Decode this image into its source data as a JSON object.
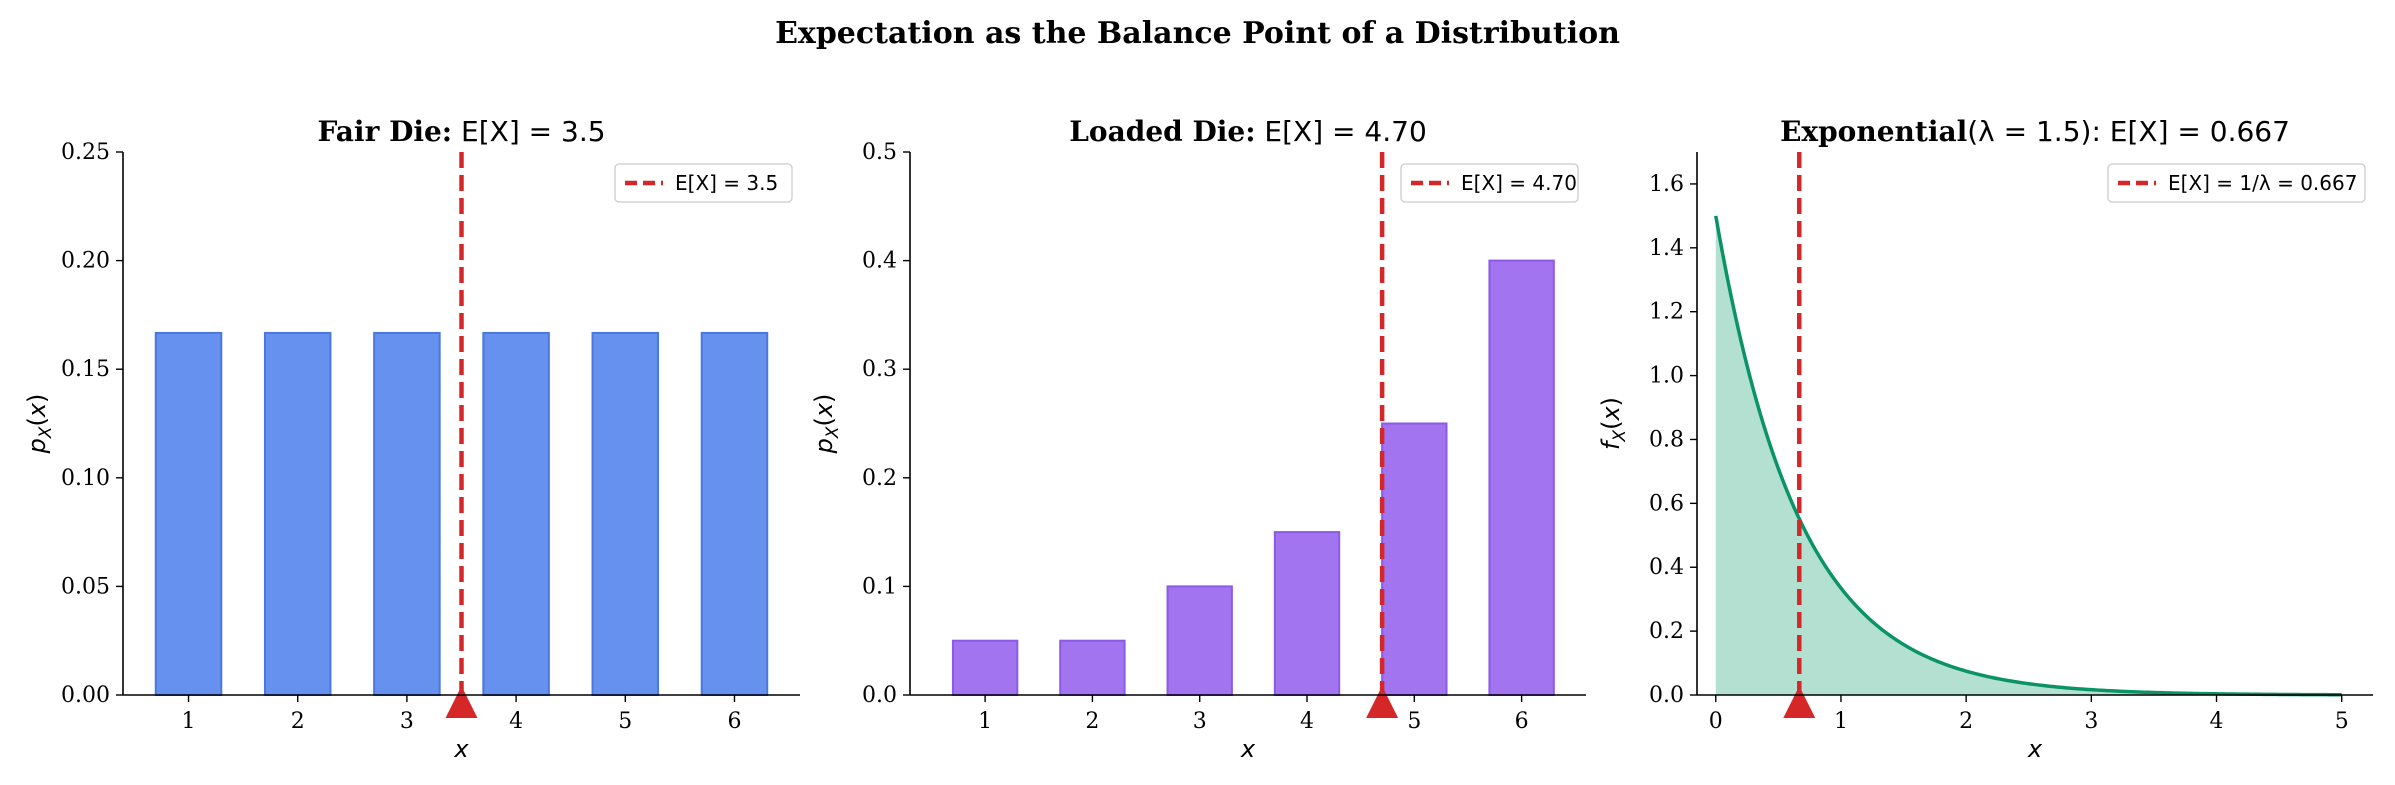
{
  "figure": {
    "title": "Expectation as the Balance Point of a Distribution"
  },
  "chart_data": [
    {
      "type": "bar",
      "title_bold": "Fair Die:",
      "title_math": "E[X] = 3.5",
      "xlabel": "x",
      "ylabel": "p_X(x)",
      "categories": [
        "1",
        "2",
        "3",
        "4",
        "5",
        "6"
      ],
      "x": [
        1,
        2,
        3,
        4,
        5,
        6
      ],
      "values": [
        0.1667,
        0.1667,
        0.1667,
        0.1667,
        0.1667,
        0.1667
      ],
      "xlim": [
        0.4,
        6.6
      ],
      "ylim": [
        0,
        0.25
      ],
      "yticks": [
        "0.00",
        "0.05",
        "0.10",
        "0.15",
        "0.20",
        "0.25"
      ],
      "expectation": 3.5,
      "legend": {
        "label": "E[X] = 3.5",
        "position": "top-right"
      },
      "colors": {
        "fill": "#6691ee",
        "edge": "#4a78e0",
        "mean": "#d62728"
      },
      "grid": false
    },
    {
      "type": "bar",
      "title_bold": "Loaded Die:",
      "title_math": "E[X] = 4.70",
      "xlabel": "x",
      "ylabel": "p_X(x)",
      "categories": [
        "1",
        "2",
        "3",
        "4",
        "5",
        "6"
      ],
      "x": [
        1,
        2,
        3,
        4,
        5,
        6
      ],
      "values": [
        0.05,
        0.05,
        0.1,
        0.15,
        0.25,
        0.4
      ],
      "xlim": [
        0.3,
        6.6
      ],
      "ylim": [
        0,
        0.5
      ],
      "yticks": [
        "0.0",
        "0.1",
        "0.2",
        "0.3",
        "0.4",
        "0.5"
      ],
      "expectation": 4.7,
      "legend": {
        "label": "E[X] = 4.70",
        "position": "top-right"
      },
      "colors": {
        "fill": "#a374f0",
        "edge": "#8b5ae6",
        "mean": "#d62728"
      },
      "grid": false
    },
    {
      "type": "area",
      "title_bold": "Exponential",
      "title_math_rest": "(λ = 1.5): E[X] = 0.667",
      "xlabel": "x",
      "ylabel": "f_X(x)",
      "lambda": 1.5,
      "x": [
        0,
        0.25,
        0.5,
        0.75,
        1.0,
        1.5,
        2.0,
        2.5,
        3.0,
        3.5,
        4.0,
        4.5,
        5.0
      ],
      "values": [
        1.5,
        1.031,
        0.708,
        0.487,
        0.335,
        0.158,
        0.075,
        0.035,
        0.017,
        0.008,
        0.004,
        0.002,
        0.001
      ],
      "xlim": [
        -0.15,
        5.25
      ],
      "ylim": [
        0,
        1.7
      ],
      "xticks": [
        "0",
        "1",
        "2",
        "3",
        "4",
        "5"
      ],
      "yticks": [
        "0.0",
        "0.2",
        "0.4",
        "0.6",
        "0.8",
        "1.0",
        "1.2",
        "1.4",
        "1.6"
      ],
      "expectation": 0.667,
      "legend": {
        "label": "E[X] = 1/λ = 0.667",
        "position": "top-right"
      },
      "colors": {
        "line": "#0a9466",
        "fill": "#b3e0d0",
        "mean": "#d62728"
      },
      "grid": false
    }
  ]
}
